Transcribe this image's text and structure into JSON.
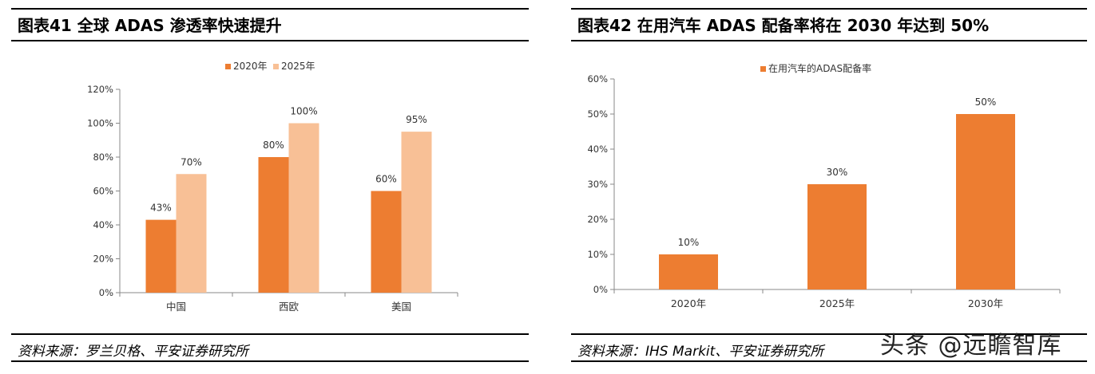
{
  "left_panel": {
    "title": "图表41    全球 ADAS 渗透率快速提升",
    "source": "资料来源：罗兰贝格、平安证券研究所"
  },
  "right_panel": {
    "title": "图表42    在用汽车 ADAS 配备率将在 2030 年达到 50%",
    "source": "资料来源：IHS Markit、平安证券研究所"
  },
  "watermark": "头条 @远瞻智库",
  "colors": {
    "dark_orange": "#ED7D31",
    "light_orange": "#F8C096",
    "axis": "#888888"
  },
  "chart_data": [
    {
      "type": "bar",
      "categories": [
        "中国",
        "西欧",
        "美国"
      ],
      "series": [
        {
          "name": "2020年",
          "values": [
            43,
            80,
            60
          ],
          "labels": [
            "43%",
            "80%",
            "60%"
          ]
        },
        {
          "name": "2025年",
          "values": [
            70,
            100,
            95
          ],
          "labels": [
            "70%",
            "100%",
            "95%"
          ]
        }
      ],
      "ylim": [
        0,
        120
      ],
      "yticks": [
        "0%",
        "20%",
        "40%",
        "60%",
        "80%",
        "100%",
        "120%"
      ],
      "legend": "top-center",
      "grid": false
    },
    {
      "type": "bar",
      "categories": [
        "2020年",
        "2025年",
        "2030年"
      ],
      "series": [
        {
          "name": "在用汽车的ADAS配备率",
          "values": [
            10,
            30,
            50
          ],
          "labels": [
            "10%",
            "30%",
            "50%"
          ]
        }
      ],
      "ylim": [
        0,
        60
      ],
      "yticks": [
        "0%",
        "10%",
        "20%",
        "30%",
        "40%",
        "50%",
        "60%"
      ],
      "legend": "top-center",
      "grid": false
    }
  ]
}
